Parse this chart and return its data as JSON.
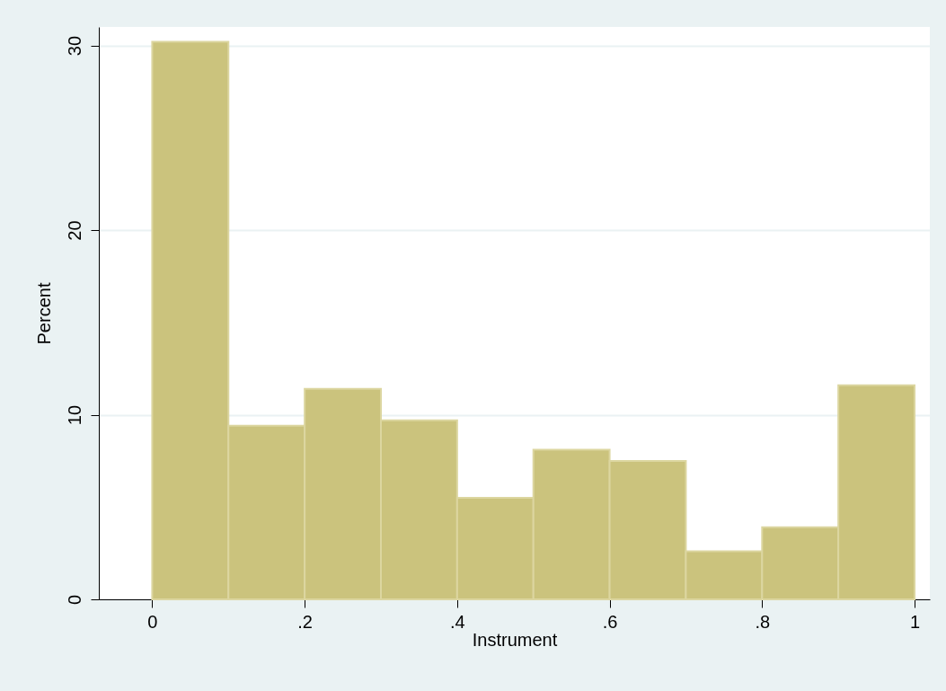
{
  "chart_data": {
    "type": "histogram",
    "xlabel": "Instrument",
    "ylabel": "Percent",
    "bins": [
      0,
      0.1,
      0.2,
      0.3,
      0.4,
      0.5,
      0.6,
      0.7,
      0.8,
      0.9,
      1
    ],
    "values": [
      30.2,
      9.4,
      11.4,
      9.7,
      5.5,
      8.1,
      7.5,
      2.6,
      3.9,
      11.6
    ],
    "color": "#cbc37d",
    "xlim": [
      -0.07,
      1.02
    ],
    "xticks": [
      0,
      {
        "value": 0.2,
        "label": ".2"
      },
      {
        "value": 0.4,
        "label": ".4"
      },
      {
        "value": 0.6,
        "label": ".6"
      },
      {
        "value": 0.8,
        "label": ".8"
      },
      1
    ],
    "ylim": [
      0,
      31
    ],
    "yticks": [
      0,
      10,
      20,
      30
    ],
    "grid": "y"
  }
}
